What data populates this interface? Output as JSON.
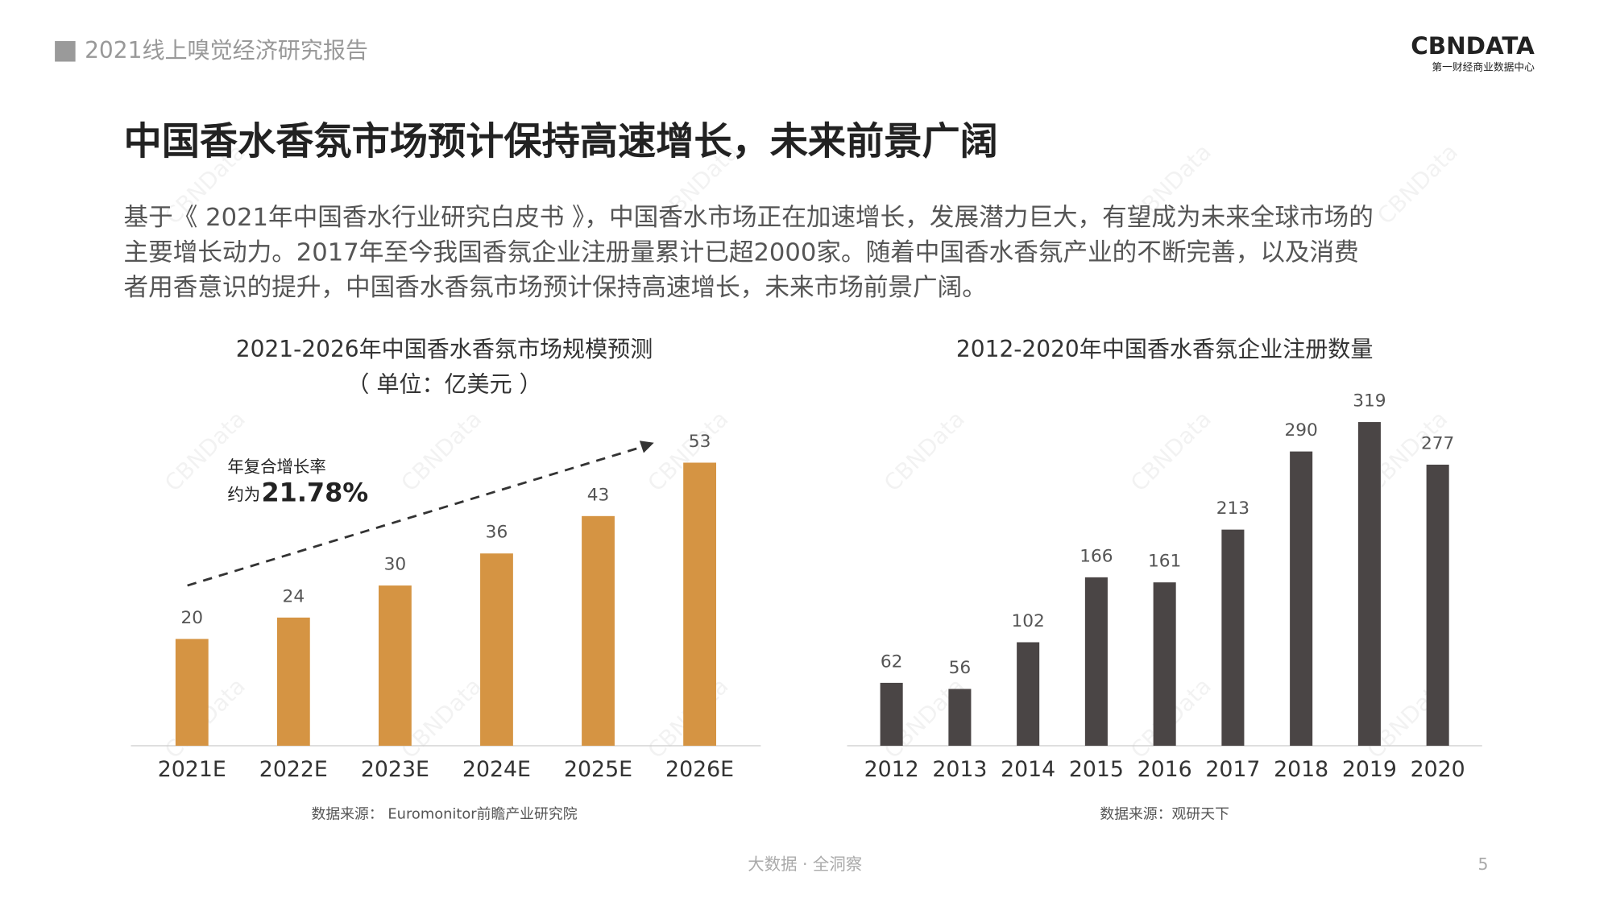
{
  "header": {
    "report_title": "2021线上嗅觉经济研究报告",
    "logo": "CBNDATA",
    "logo_subtitle": "第一财经商业数据中心"
  },
  "title": "中国香水香氛市场预计保持高速增长，未来前景广阔",
  "body": [
    "基于《 2021年中国香水行业研究白皮书 》，中国香水市场正在加速增长，发展潜力巨大，有望成为未来全球市场的",
    "主要增长动力。2017年至今我国香氛企业注册量累计已超2000家。随着中国香水香氛产业的不断完善，以及消费",
    "者用香意识的提升，中国香水香氛市场预计保持高速增长，未来市场前景广阔。"
  ],
  "watermark": "CBNData",
  "chart_data": [
    {
      "type": "bar",
      "title": "2021-2026年中国香水香氛市场规模预测",
      "subtitle": "（ 单位：亿美元 ）",
      "categories": [
        "2021E",
        "2022E",
        "2023E",
        "2024E",
        "2025E",
        "2026E"
      ],
      "values": [
        20,
        24,
        30,
        36,
        43,
        53
      ],
      "color": "#d59443",
      "ylim": [
        0,
        60
      ],
      "annotation": {
        "label": "年复合增长率",
        "prefix": "约为",
        "value": "21.78%"
      },
      "source": "数据来源： Euromonitor前瞻产业研究院"
    },
    {
      "type": "bar",
      "title": "2012-2020年中国香水香氛企业注册数量",
      "categories": [
        "2012",
        "2013",
        "2014",
        "2015",
        "2016",
        "2017",
        "2018",
        "2019",
        "2020"
      ],
      "values": [
        62,
        56,
        102,
        166,
        161,
        213,
        290,
        319,
        277
      ],
      "color": "#4a4545",
      "ylim": [
        0,
        330
      ],
      "source": "数据来源：观研天下"
    }
  ],
  "footer": {
    "slogan": "大数据 · 全洞察",
    "page": "5"
  }
}
